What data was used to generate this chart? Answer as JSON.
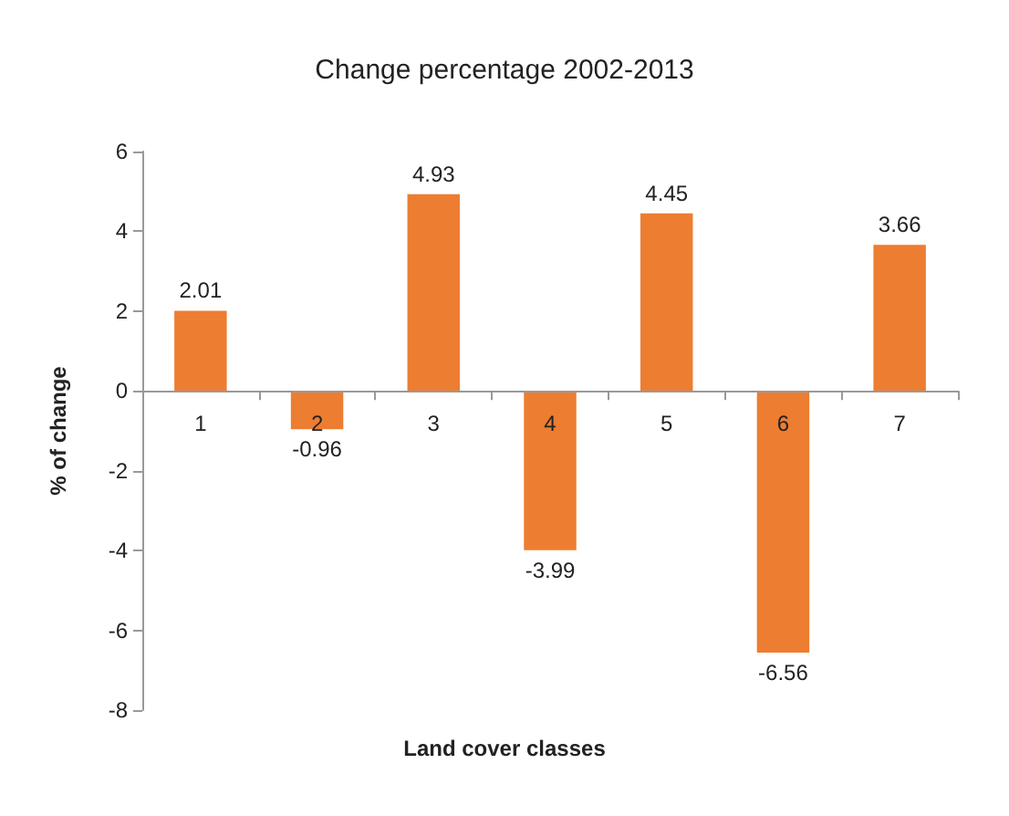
{
  "chart_data": {
    "type": "bar",
    "title": "Change percentage 2002-2013",
    "xlabel": "Land cover classes",
    "ylabel": "% of change",
    "categories": [
      "1",
      "2",
      "3",
      "4",
      "5",
      "6",
      "7"
    ],
    "values": [
      2.01,
      -0.96,
      4.93,
      -3.99,
      4.45,
      -6.56,
      3.66
    ],
    "color": "#ed7d31",
    "data_labels": true,
    "ylim": [
      -8,
      6
    ],
    "yticks": [
      -8,
      -6,
      -4,
      -2,
      0,
      2,
      4,
      6
    ]
  }
}
